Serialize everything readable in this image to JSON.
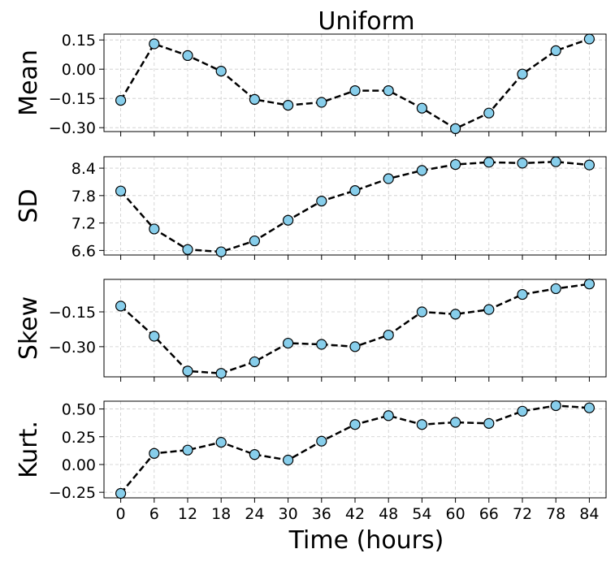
{
  "chart_data": {
    "type": "line",
    "title": "Uniform",
    "xlabel": "Time (hours)",
    "x": [
      0,
      6,
      12,
      18,
      24,
      30,
      36,
      42,
      48,
      54,
      60,
      66,
      72,
      78,
      84
    ],
    "xlim": [
      -3,
      87
    ],
    "x_tick_labels": [
      "0",
      "6",
      "12",
      "18",
      "24",
      "30",
      "36",
      "42",
      "48",
      "54",
      "60",
      "66",
      "72",
      "78",
      "84"
    ],
    "grid": true,
    "line_style": "dashed",
    "line_color": "#000000",
    "marker_fill": "#87ceeb",
    "marker_edge": "#000000",
    "panels": [
      {
        "ylabel": "Mean",
        "ylim": [
          -0.32,
          0.18
        ],
        "yticks": [
          -0.3,
          -0.15,
          0.0,
          0.15
        ],
        "ytick_labels": [
          "−0.30",
          "−0.15",
          "0.00",
          "0.15"
        ],
        "values": [
          -0.16,
          0.13,
          0.07,
          -0.01,
          -0.155,
          -0.185,
          -0.17,
          -0.11,
          -0.11,
          -0.2,
          -0.305,
          -0.225,
          -0.025,
          0.095,
          0.155
        ]
      },
      {
        "ylabel": "SD",
        "ylim": [
          6.5,
          8.65
        ],
        "yticks": [
          6.6,
          7.2,
          7.8,
          8.4
        ],
        "ytick_labels": [
          "6.6",
          "7.2",
          "7.8",
          "8.4"
        ],
        "values": [
          7.9,
          7.07,
          6.62,
          6.57,
          6.81,
          7.26,
          7.68,
          7.91,
          8.17,
          8.35,
          8.48,
          8.53,
          8.51,
          8.54,
          8.47
        ]
      },
      {
        "ylabel": "Skew",
        "ylim": [
          -0.43,
          -0.01
        ],
        "yticks": [
          -0.15,
          -0.3
        ],
        "ytick_labels": [
          "−0.15",
          "−0.30"
        ],
        "values": [
          -0.125,
          -0.255,
          -0.405,
          -0.415,
          -0.365,
          -0.285,
          -0.29,
          -0.3,
          -0.25,
          -0.15,
          -0.16,
          -0.14,
          -0.075,
          -0.05,
          -0.03
        ]
      },
      {
        "ylabel": "Kurt.",
        "ylim": [
          -0.3,
          0.57
        ],
        "yticks": [
          -0.25,
          0.0,
          0.25,
          0.5
        ],
        "ytick_labels": [
          "−0.25",
          "0.00",
          "0.25",
          "0.50"
        ],
        "values": [
          -0.26,
          0.1,
          0.13,
          0.2,
          0.09,
          0.04,
          0.21,
          0.36,
          0.44,
          0.36,
          0.38,
          0.37,
          0.48,
          0.53,
          0.51
        ]
      }
    ]
  }
}
